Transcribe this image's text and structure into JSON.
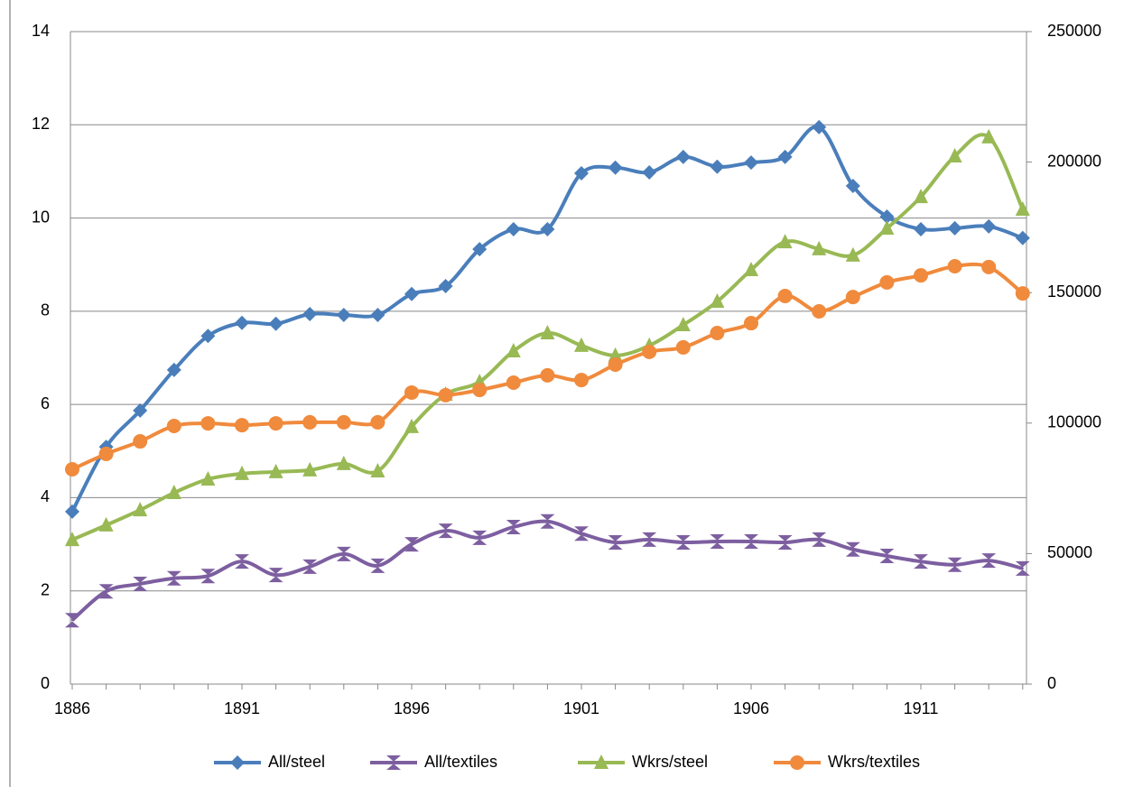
{
  "chart_data": {
    "type": "line",
    "categories": [
      "1886",
      null,
      null,
      null,
      null,
      "1891",
      null,
      null,
      null,
      null,
      "1896",
      null,
      null,
      null,
      null,
      "1901",
      null,
      null,
      null,
      null,
      "1906",
      null,
      null,
      null,
      null,
      "1911",
      null,
      null,
      null
    ],
    "ylim": [
      0,
      14
    ],
    "yticks": [
      0,
      2,
      4,
      6,
      8,
      10,
      12,
      14
    ],
    "y2lim": [
      0,
      250000
    ],
    "y2ticks": [
      0,
      50000,
      100000,
      150000,
      200000,
      250000
    ],
    "grid": true,
    "legend": "bottom",
    "series": [
      {
        "name": "All/steel",
        "color": "#4a7ebb",
        "marker": "diamond",
        "values": [
          3.7,
          5.09,
          5.87,
          6.74,
          7.47,
          7.75,
          7.73,
          7.94,
          7.92,
          7.92,
          8.37,
          8.54,
          9.33,
          9.76,
          9.76,
          10.96,
          11.08,
          10.98,
          11.31,
          11.1,
          11.19,
          11.31,
          11.95,
          10.69,
          10.03,
          9.76,
          9.78,
          9.82,
          9.57
        ]
      },
      {
        "name": "All/textiles",
        "color": "#7d5fa0",
        "marker": "hourglass",
        "values": [
          1.37,
          1.99,
          2.15,
          2.27,
          2.32,
          2.63,
          2.34,
          2.52,
          2.79,
          2.54,
          3.0,
          3.29,
          3.14,
          3.37,
          3.49,
          3.23,
          3.04,
          3.1,
          3.04,
          3.06,
          3.06,
          3.04,
          3.1,
          2.89,
          2.75,
          2.63,
          2.56,
          2.65,
          2.48
        ]
      },
      {
        "name": "Wkrs/steel",
        "color": "#98b954",
        "marker": "triangle",
        "axis": "y2",
        "values": [
          55300,
          60900,
          66700,
          73300,
          78500,
          80600,
          81300,
          82000,
          84400,
          81600,
          98600,
          111000,
          115800,
          127600,
          134500,
          129700,
          125900,
          129700,
          137600,
          146600,
          158700,
          169400,
          166700,
          164300,
          174600,
          186700,
          202300,
          209600,
          181900
        ]
      },
      {
        "name": "Wkrs/textiles",
        "color": "#f08a3c",
        "marker": "circle",
        "axis": "y2",
        "values": [
          82300,
          88200,
          93000,
          98900,
          99900,
          99200,
          99900,
          100300,
          100300,
          100300,
          111700,
          110700,
          112700,
          115500,
          118300,
          116500,
          122400,
          127300,
          129000,
          134500,
          138300,
          148700,
          142800,
          148300,
          153900,
          156600,
          160100,
          159800,
          149700
        ]
      }
    ]
  }
}
